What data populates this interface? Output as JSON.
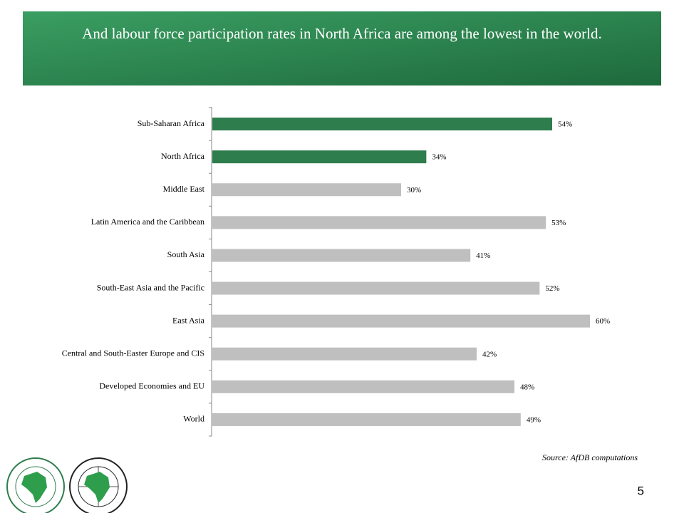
{
  "chart_data": {
    "type": "hbar",
    "title": "And labour force participation rates in North Africa are among the lowest in the world.",
    "categories": [
      "Sub-Saharan Africa",
      "North Africa",
      "Middle East",
      "Latin America and the Caribbean",
      "South Asia",
      "South-East Asia and the Pacific",
      "East Asia",
      "Central and South-Easter Europe and CIS",
      "Developed Economies and EU",
      "World"
    ],
    "values": [
      54,
      34,
      30,
      53,
      41,
      52,
      60,
      42,
      48,
      49
    ],
    "value_labels": [
      "54%",
      "34%",
      "30%",
      "53%",
      "41%",
      "52%",
      "60%",
      "42%",
      "48%",
      "49%"
    ],
    "colors": [
      "#2e7d4c",
      "#2e7d4c",
      "#bfbfbf",
      "#bfbfbf",
      "#bfbfbf",
      "#bfbfbf",
      "#bfbfbf",
      "#bfbfbf",
      "#bfbfbf",
      "#bfbfbf"
    ],
    "source": "Source: AfDB computations",
    "page_number": "5"
  }
}
